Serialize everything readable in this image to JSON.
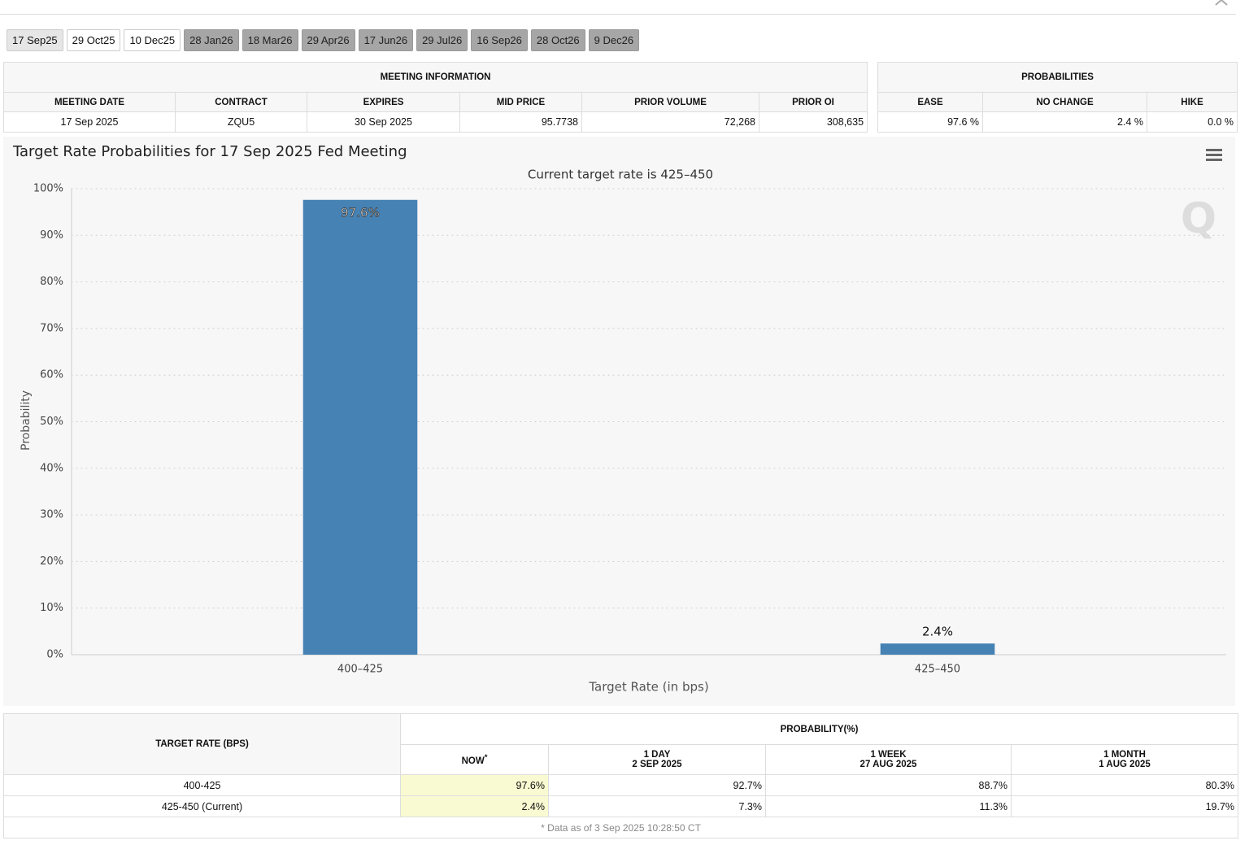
{
  "tabs": [
    "17 Sep25",
    "29 Oct25",
    "10 Dec25",
    "28 Jan26",
    "18 Mar26",
    "29 Apr26",
    "17 Jun26",
    "29 Jul26",
    "16 Sep26",
    "28 Oct26",
    "9 Dec26"
  ],
  "meeting_info": {
    "title": "MEETING INFORMATION",
    "headers": [
      "MEETING DATE",
      "CONTRACT",
      "EXPIRES",
      "MID PRICE",
      "PRIOR VOLUME",
      "PRIOR OI"
    ],
    "row": [
      "17 Sep 2025",
      "ZQU5",
      "30 Sep 2025",
      "95.7738",
      "72,268",
      "308,635"
    ]
  },
  "probabilities": {
    "title": "PROBABILITIES",
    "headers": [
      "EASE",
      "NO CHANGE",
      "HIKE"
    ],
    "row": [
      "97.6 %",
      "2.4 %",
      "0.0 %"
    ]
  },
  "chart_data": {
    "type": "bar",
    "title": "Target Rate Probabilities for 17 Sep 2025 Fed Meeting",
    "subtitle": "Current target rate is 425–450",
    "categories": [
      "400–425",
      "425–450"
    ],
    "values": [
      97.6,
      2.4
    ],
    "value_labels": [
      "97.6%",
      "2.4%"
    ],
    "color": "#4682b4",
    "x_label": "Target Rate (in bps)",
    "y_label": "Probability",
    "ylim": [
      0,
      100
    ],
    "yticks": [
      {
        "value": 0,
        "label": "0%"
      },
      {
        "value": 10,
        "label": "10%"
      },
      {
        "value": 20,
        "label": "20%"
      },
      {
        "value": 30,
        "label": "30%"
      },
      {
        "value": 40,
        "label": "40%"
      },
      {
        "value": 50,
        "label": "50%"
      },
      {
        "value": 60,
        "label": "60%"
      },
      {
        "value": 70,
        "label": "70%"
      },
      {
        "value": 80,
        "label": "80%"
      },
      {
        "value": 90,
        "label": "90%"
      },
      {
        "value": 100,
        "label": "100%"
      }
    ],
    "grid": true
  },
  "table": {
    "row_header": "TARGET RATE (BPS)",
    "group_header": "PROBABILITY(%)",
    "columns": [
      {
        "label": "NOW",
        "note": "*"
      },
      {
        "label": "1 DAY",
        "date": "2 SEP 2025"
      },
      {
        "label": "1 WEEK",
        "date": "27 AUG 2025"
      },
      {
        "label": "1 MONTH",
        "date": "1 AUG 2025"
      }
    ],
    "rows": [
      [
        "400-425",
        "97.6%",
        "92.7%",
        "88.7%",
        "80.3%"
      ],
      [
        "425-450 (Current)",
        "2.4%",
        "7.3%",
        "11.3%",
        "19.7%"
      ]
    ],
    "footnote": "* Data as of 3 Sep 2025 10:28:50 CT"
  }
}
